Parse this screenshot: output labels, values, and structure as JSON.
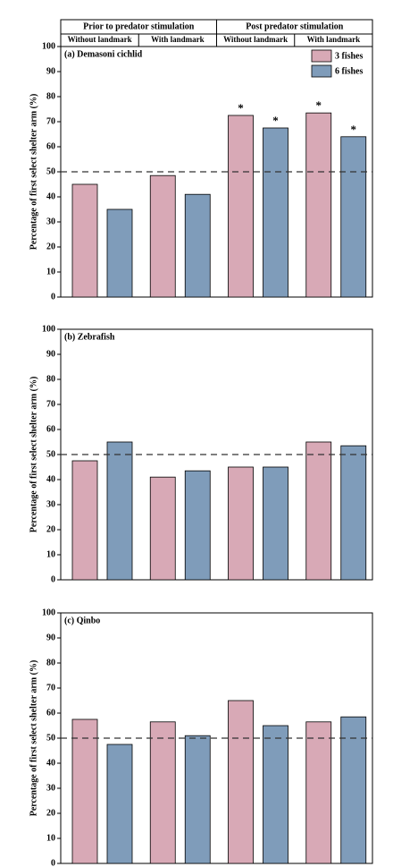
{
  "chart_data": [
    {
      "type": "bar",
      "title": "(a) Demasoni cichlid",
      "groups": [
        {
          "label": "Prior to predator stimulation",
          "span": 2
        },
        {
          "label": "Post predator stimulation",
          "span": 2
        }
      ],
      "categories": [
        "Without landmark",
        "With landmark",
        "Without landmark",
        "With landmark"
      ],
      "ylabel": "Percentage of first select shelter arm (%)",
      "ylim": [
        0,
        100
      ],
      "yticks": [
        0,
        10,
        20,
        30,
        40,
        50,
        60,
        70,
        80,
        90,
        100
      ],
      "reference_line": 50,
      "legend": "upper right",
      "series": [
        {
          "name": "3 fishes",
          "color": "#d8a9b6",
          "values": [
            45,
            48.5,
            72.5,
            73.5
          ],
          "annotations": [
            null,
            null,
            "*",
            "*"
          ]
        },
        {
          "name": "6 fishes",
          "color": "#7f9cba",
          "values": [
            35,
            41,
            67.5,
            64
          ],
          "annotations": [
            null,
            null,
            "*",
            "*"
          ]
        }
      ]
    },
    {
      "type": "bar",
      "title": "(b) Zebrafish",
      "categories": [
        null,
        null,
        null,
        null
      ],
      "ylabel": "Percentage of first select shelter arm (%)",
      "ylim": [
        0,
        100
      ],
      "yticks": [
        0,
        10,
        20,
        30,
        40,
        50,
        60,
        70,
        80,
        90,
        100
      ],
      "reference_line": 50,
      "series": [
        {
          "color": "#d8a9b6",
          "values": [
            47.5,
            41,
            45,
            55
          ]
        },
        {
          "color": "#7f9cba",
          "values": [
            55,
            43.5,
            45,
            53.5
          ]
        }
      ]
    },
    {
      "type": "bar",
      "title": "(c) Qinbo",
      "categories": [
        null,
        null,
        null,
        null
      ],
      "ylabel": "Percentage of first select shelter arm (%)",
      "ylim": [
        0,
        100
      ],
      "yticks": [
        0,
        10,
        20,
        30,
        40,
        50,
        60,
        70,
        80,
        90,
        100
      ],
      "reference_line": 50,
      "series": [
        {
          "color": "#d8a9b6",
          "values": [
            57.5,
            56.5,
            65,
            56.5
          ]
        },
        {
          "color": "#7f9cba",
          "values": [
            47.5,
            51,
            55,
            58.5
          ]
        }
      ]
    }
  ]
}
